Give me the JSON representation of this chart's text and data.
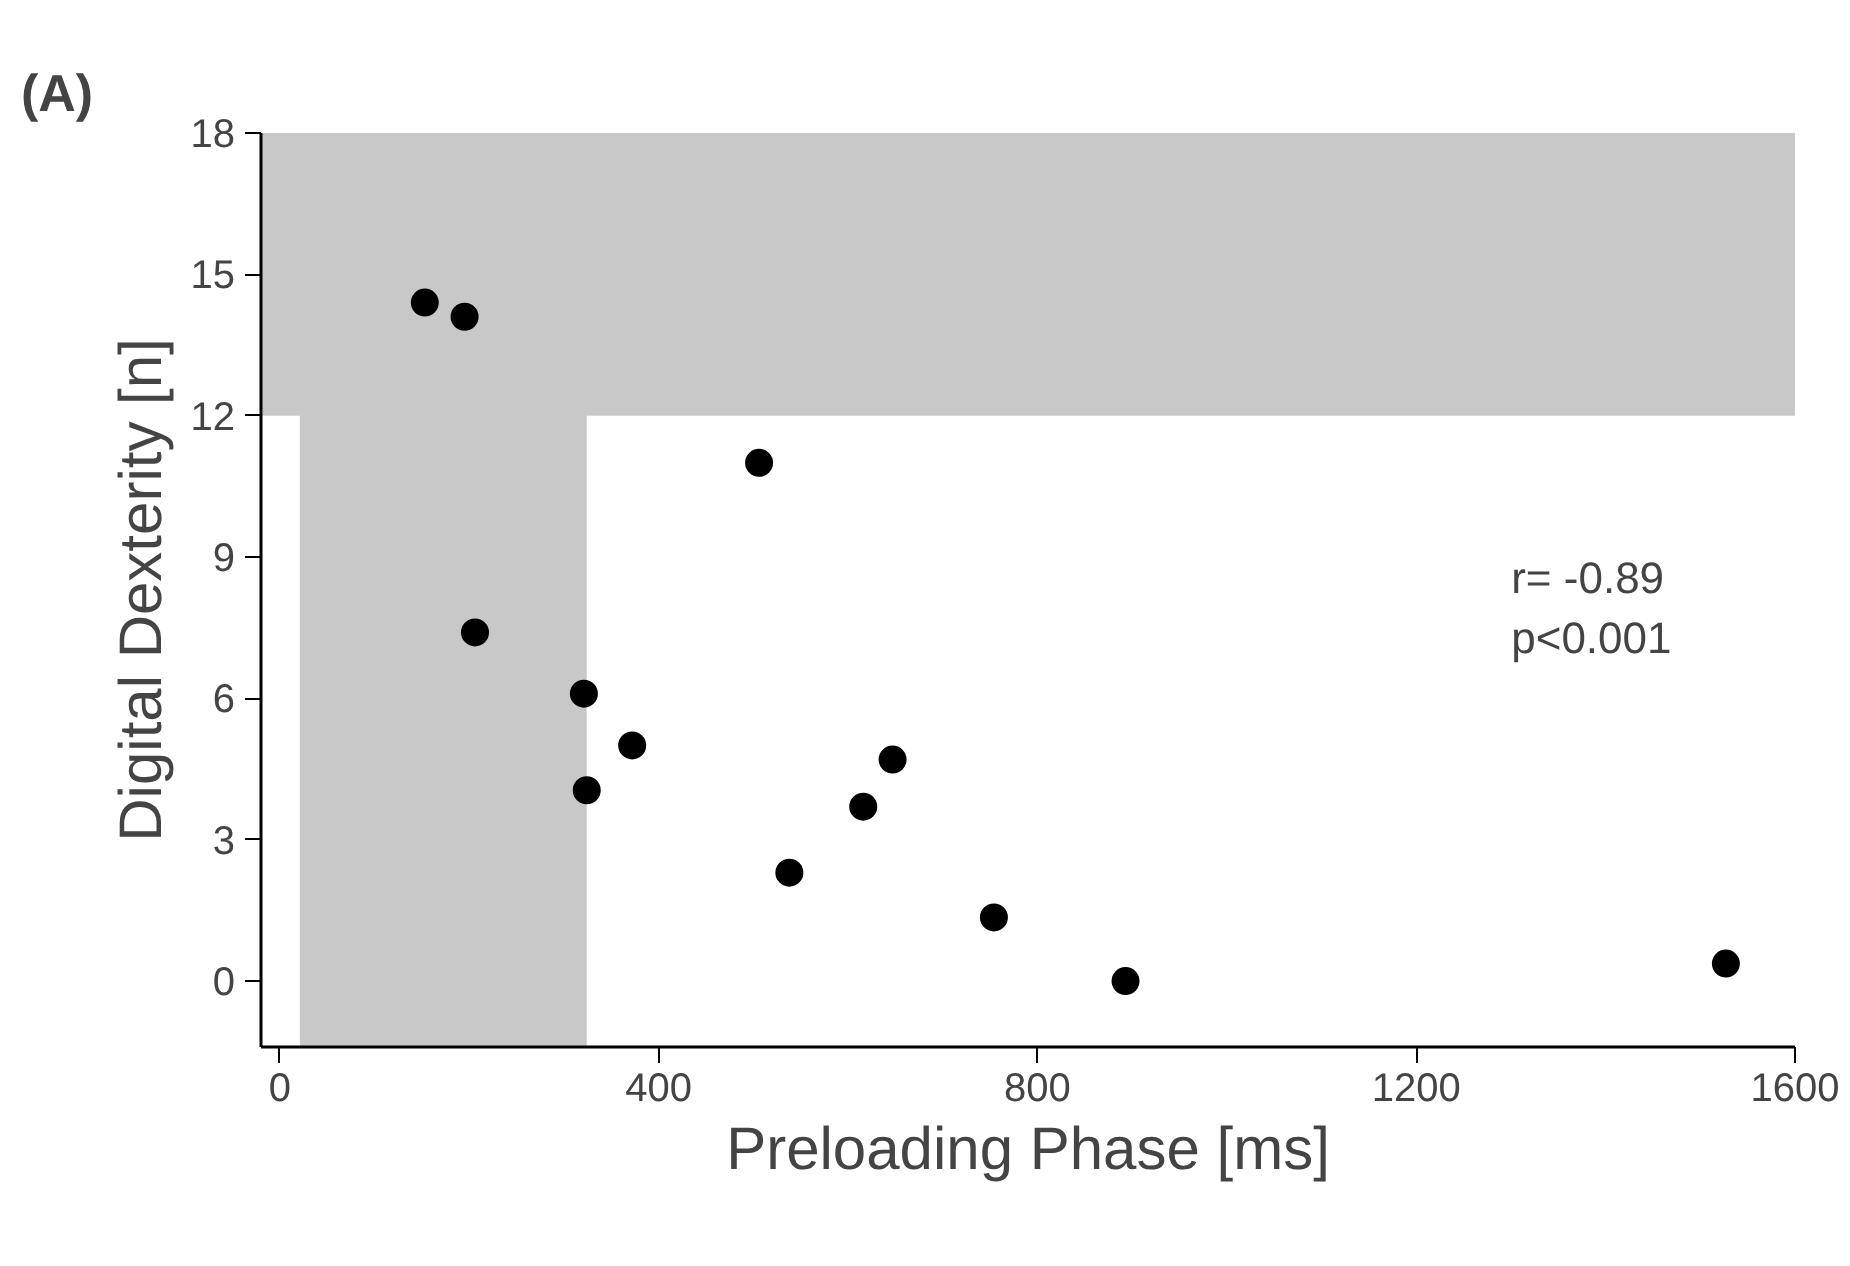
{
  "chart_data": {
    "type": "scatter",
    "xlabel": "Preloading Phase [ms]",
    "ylabel": "Digital Dexterity [n]",
    "x": [
      153,
      195,
      206,
      321,
      324,
      372,
      506,
      538,
      616,
      647,
      754,
      893,
      1527
    ],
    "values": [
      14.4,
      14.1,
      7.4,
      6.1,
      4.05,
      5.0,
      11.0,
      2.3,
      3.7,
      4.7,
      1.35,
      0,
      0.37
    ],
    "color": "#000000",
    "marker": "circle",
    "xlim": [
      -20,
      1600
    ],
    "ylim": [
      -1.4,
      18
    ],
    "xticks": [
      0,
      400,
      800,
      1200,
      1600
    ],
    "yticks": [
      0,
      3,
      6,
      9,
      12,
      15,
      18
    ],
    "grid": false,
    "bands": [
      {
        "axis": "x",
        "from": 21,
        "to": 324,
        "color": "#c8c8c8"
      },
      {
        "axis": "y",
        "from": 12,
        "to": 18,
        "color": "#c8c8c8"
      }
    ],
    "annotations": [
      "(A)",
      "r= -0.89\np<0.001"
    ]
  }
}
